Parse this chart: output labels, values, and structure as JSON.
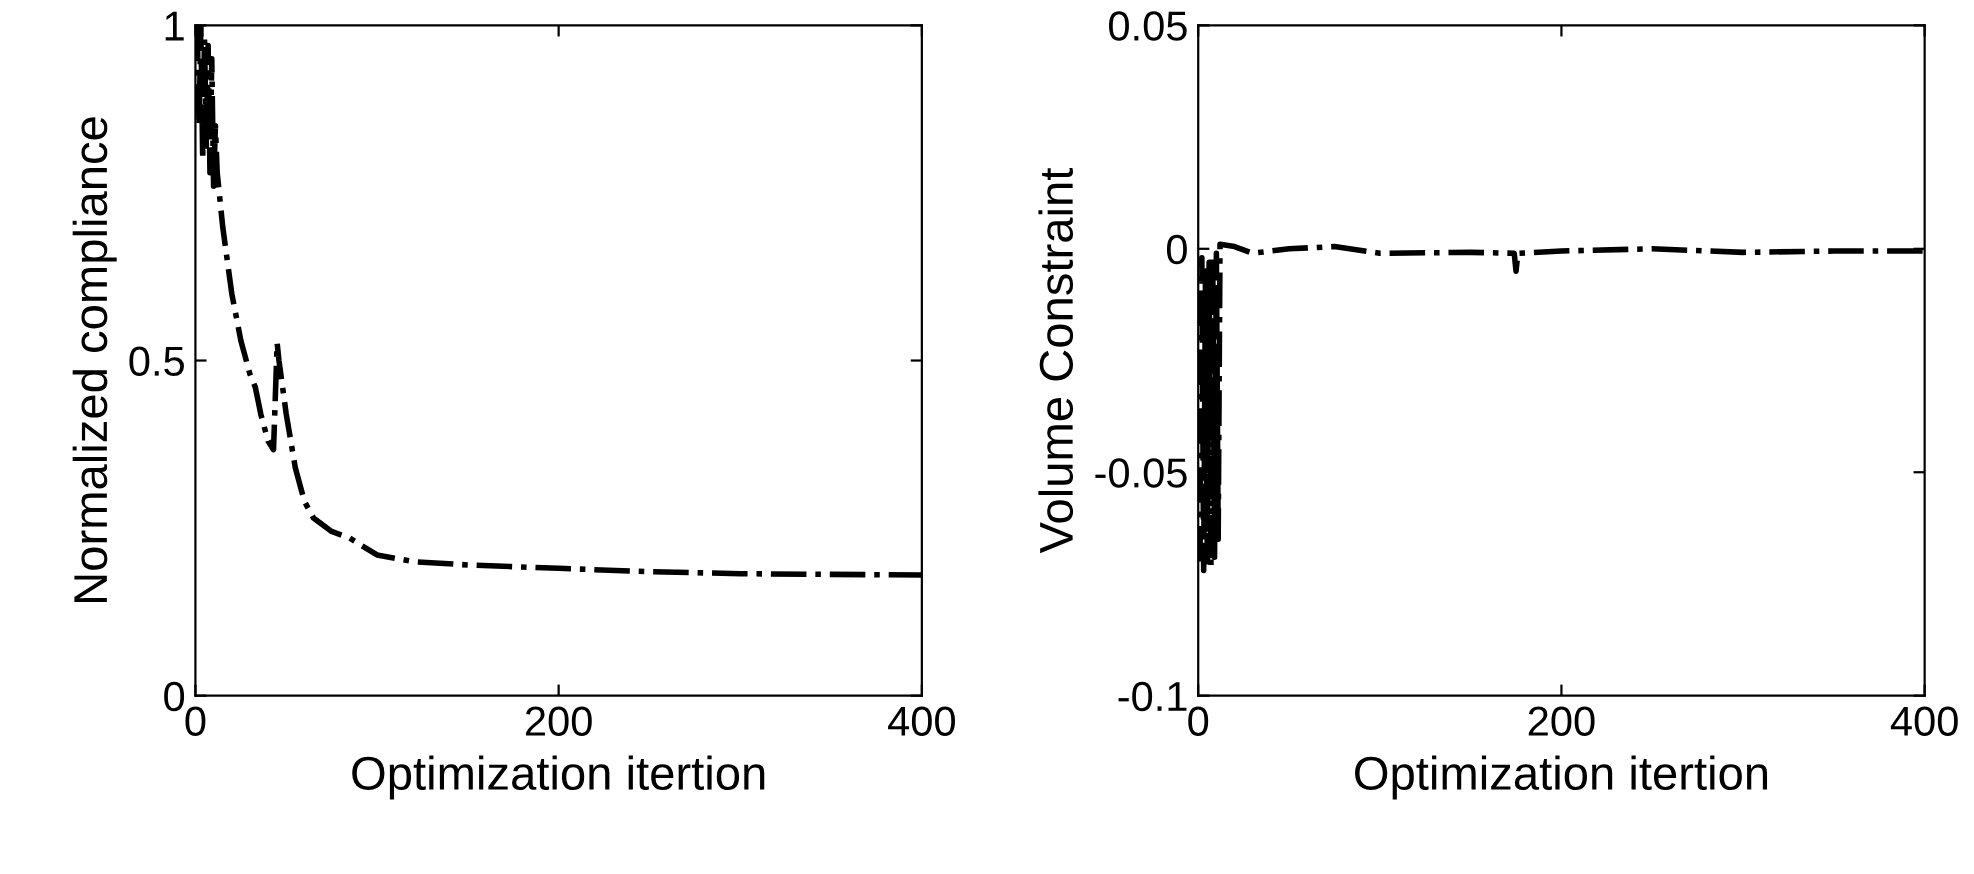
{
  "chart_data": [
    {
      "type": "line",
      "xlabel": "Optimization itertion",
      "ylabel": "Normalized compliance",
      "xlim": [
        0,
        400
      ],
      "xticks": [
        0,
        200,
        400
      ],
      "ylim": [
        0,
        1
      ],
      "yticks": [
        0,
        0.5,
        1
      ],
      "line_style": "dashdot",
      "grid": false,
      "legend": false,
      "series": [
        {
          "color": "#000000",
          "x": [
            1,
            2,
            3,
            4,
            5,
            6,
            7,
            8,
            9,
            10,
            11,
            12,
            15,
            20,
            25,
            30,
            33,
            36,
            40,
            43,
            45,
            46,
            50,
            55,
            60,
            65,
            75,
            85,
            100,
            120,
            150,
            200,
            250,
            300,
            350,
            400
          ],
          "values": [
            1.0,
            0.85,
            1.0,
            0.8,
            0.98,
            0.82,
            0.97,
            0.78,
            0.95,
            0.76,
            0.85,
            0.78,
            0.7,
            0.6,
            0.53,
            0.48,
            0.46,
            0.42,
            0.38,
            0.367,
            0.526,
            0.5,
            0.42,
            0.34,
            0.29,
            0.265,
            0.245,
            0.235,
            0.21,
            0.2,
            0.195,
            0.19,
            0.185,
            0.182,
            0.181,
            0.18
          ]
        }
      ]
    },
    {
      "type": "line",
      "xlabel": "Optimization itertion",
      "ylabel": "Volume Constraint",
      "xlim": [
        0,
        400
      ],
      "xticks": [
        0,
        200,
        400
      ],
      "ylim": [
        -0.1,
        0.05
      ],
      "yticks": [
        -0.1,
        -0.05,
        0,
        0.05
      ],
      "line_style": "dashdot",
      "grid": false,
      "legend": false,
      "series": [
        {
          "color": "#000000",
          "x": [
            1,
            2,
            3,
            4,
            5,
            6,
            7,
            8,
            9,
            10,
            11,
            12,
            20,
            30,
            50,
            75,
            100,
            150,
            174,
            175,
            176,
            200,
            250,
            300,
            350,
            400
          ],
          "values": [
            -0.07,
            -0.002,
            -0.072,
            -0.005,
            -0.07,
            -0.003,
            -0.071,
            -0.002,
            -0.069,
            -0.001,
            -0.065,
            0.001,
            0.0005,
            -0.001,
            0.0,
            0.0005,
            -0.001,
            -0.0008,
            -0.001,
            -0.005,
            -0.001,
            -0.0005,
            0.0,
            -0.0008,
            -0.0005,
            -0.0005
          ]
        }
      ]
    }
  ]
}
